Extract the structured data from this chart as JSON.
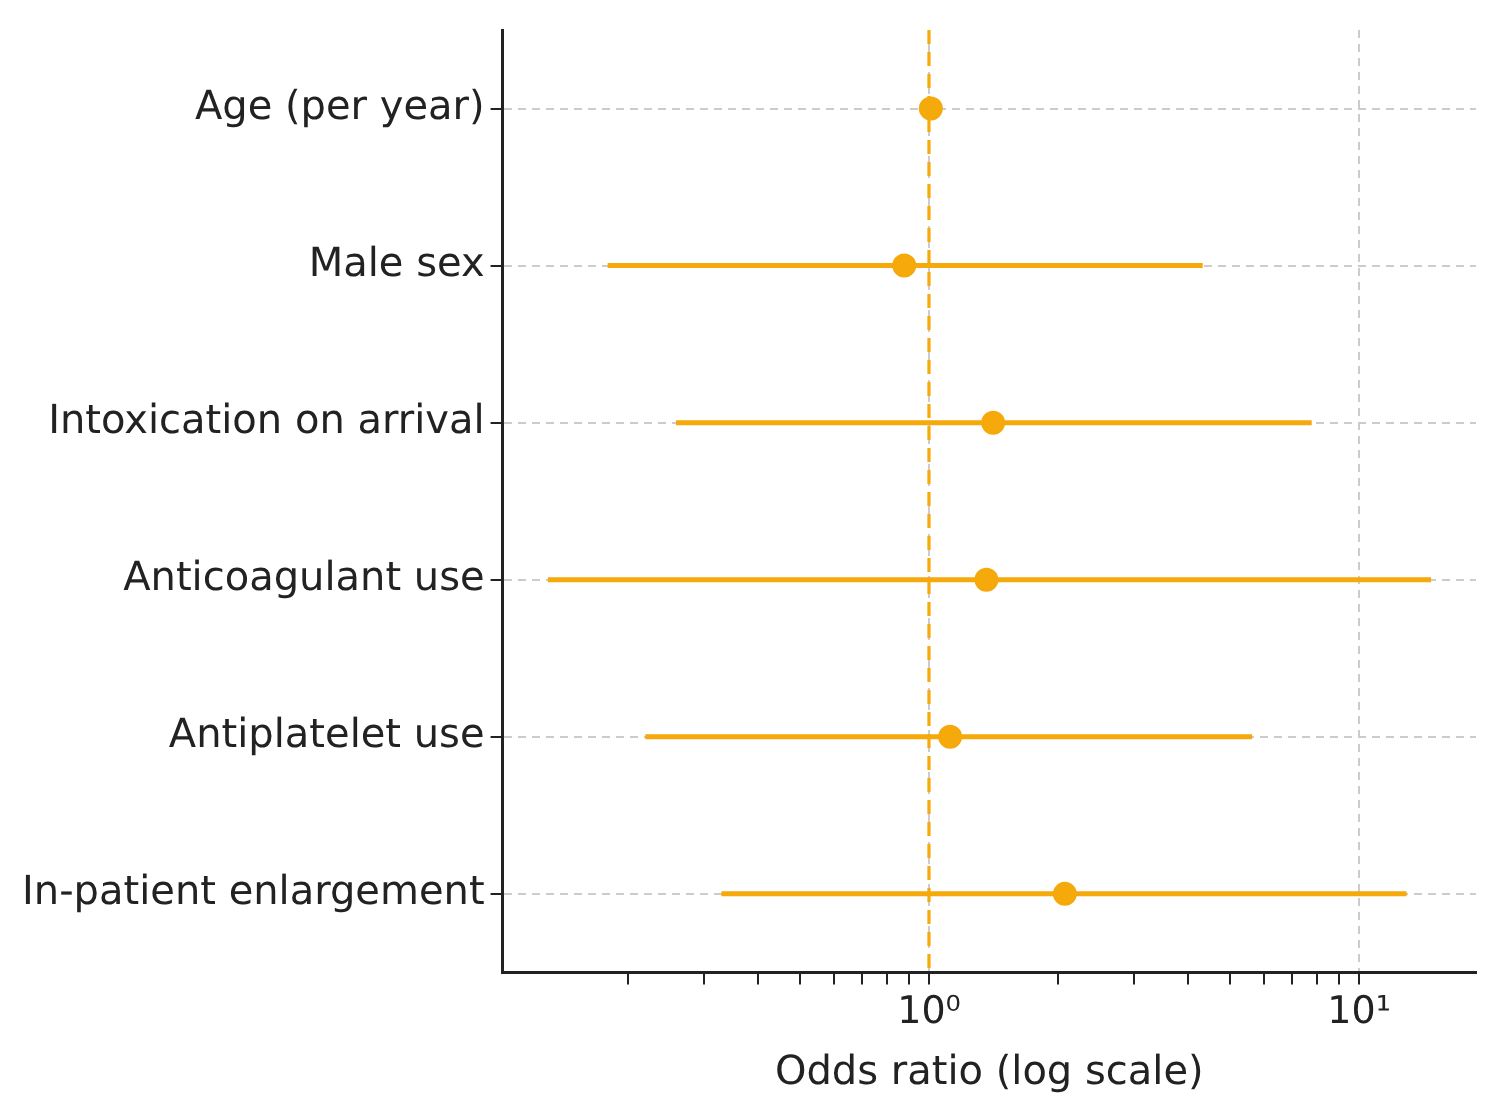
{
  "chart_data": {
    "type": "scatter",
    "orientation": "horizontal",
    "xlabel": "Odds ratio (log scale)",
    "categories": [
      "Age (per year)",
      "Male sex",
      "Intoxication on arrival",
      "Anticoagulant use",
      "Antiplatelet use",
      "In-patient enlargement"
    ],
    "values": [
      1.01,
      0.876,
      1.41,
      1.36,
      1.12,
      2.07
    ],
    "errors": [
      null,
      [
        0.179,
        4.33
      ],
      [
        0.258,
        7.76
      ],
      [
        0.13,
        14.7
      ],
      [
        0.219,
        5.64
      ],
      [
        0.329,
        12.9
      ]
    ],
    "color": "#f5a90a",
    "marker": "circle",
    "log": "x",
    "grid": true,
    "xlim": [
      0.102,
      18.7
    ],
    "xticks": [
      {
        "value": 0.2,
        "label": null
      },
      {
        "value": 0.3,
        "label": null
      },
      {
        "value": 0.4,
        "label": null
      },
      {
        "value": 0.5,
        "label": null
      },
      {
        "value": 0.6,
        "label": null
      },
      {
        "value": 0.7,
        "label": null
      },
      {
        "value": 0.8,
        "label": null
      },
      {
        "value": 0.9,
        "label": null
      },
      {
        "value": 1,
        "label": "10⁰"
      },
      {
        "value": 2,
        "label": null
      },
      {
        "value": 3,
        "label": null
      },
      {
        "value": 4,
        "label": null
      },
      {
        "value": 5,
        "label": null
      },
      {
        "value": 6,
        "label": null
      },
      {
        "value": 7,
        "label": null
      },
      {
        "value": 8,
        "label": null
      },
      {
        "value": 9,
        "label": null
      },
      {
        "value": 10,
        "label": "10¹"
      }
    ],
    "ref_lines": [
      {
        "axis": "x",
        "value": 1,
        "color": "#f5a90a",
        "line_style": "dashed"
      }
    ]
  }
}
